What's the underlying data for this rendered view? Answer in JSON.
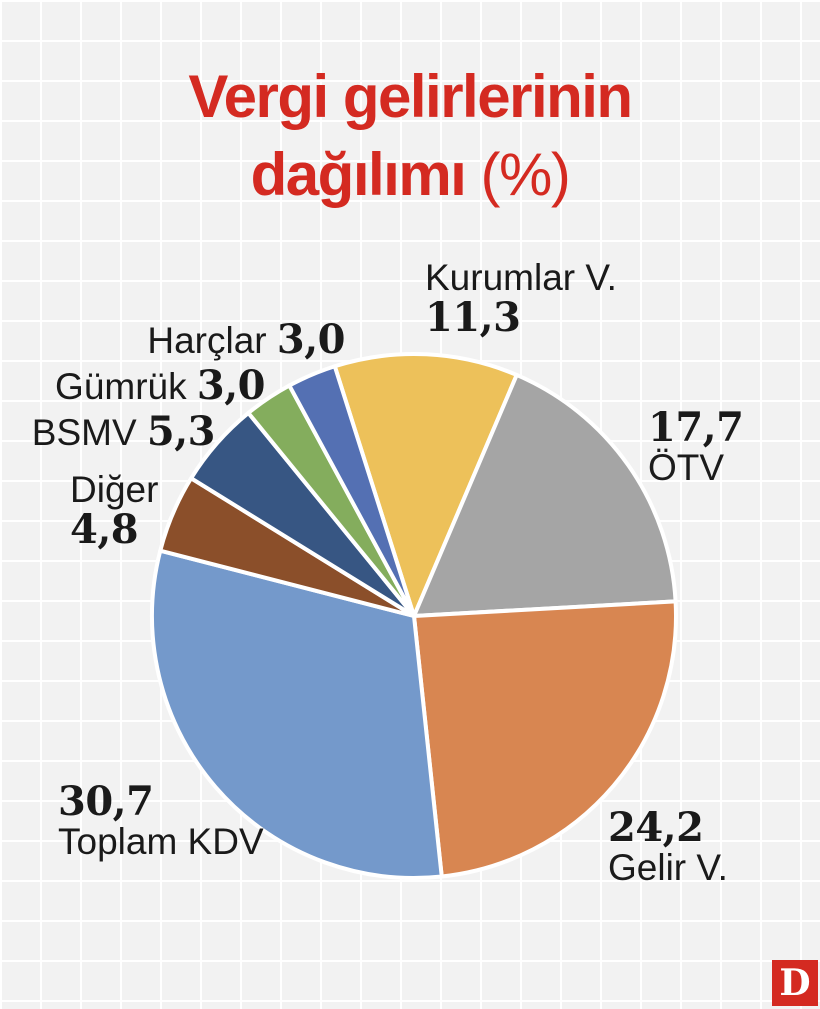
{
  "chart_data": {
    "type": "pie",
    "title_main": "Vergi gelirlerinin",
    "title_line2": "dağılımı",
    "title_unit": "(%)",
    "slices": [
      {
        "label": "Kurumlar V.",
        "value_text": "11,3",
        "value": 11.3,
        "color": "#edc15a"
      },
      {
        "label": "ÖTV",
        "value_text": "17,7",
        "value": 17.7,
        "color": "#a5a5a5"
      },
      {
        "label": "Gelir V.",
        "value_text": "24,2",
        "value": 24.2,
        "color": "#d88651"
      },
      {
        "label": "Toplam KDV",
        "value_text": "30,7",
        "value": 30.7,
        "color": "#7499cb"
      },
      {
        "label": "Diğer",
        "value_text": "4,8",
        "value": 4.8,
        "color": "#8b4f2a"
      },
      {
        "label": "BSMV",
        "value_text": "5,3",
        "value": 5.3,
        "color": "#375683"
      },
      {
        "label": "Gümrük",
        "value_text": "3,0",
        "value": 3.0,
        "color": "#84ad5d"
      },
      {
        "label": "Harçlar",
        "value_text": "3,0",
        "value": 3.0,
        "color": "#5470b3"
      }
    ]
  },
  "logo": "D"
}
